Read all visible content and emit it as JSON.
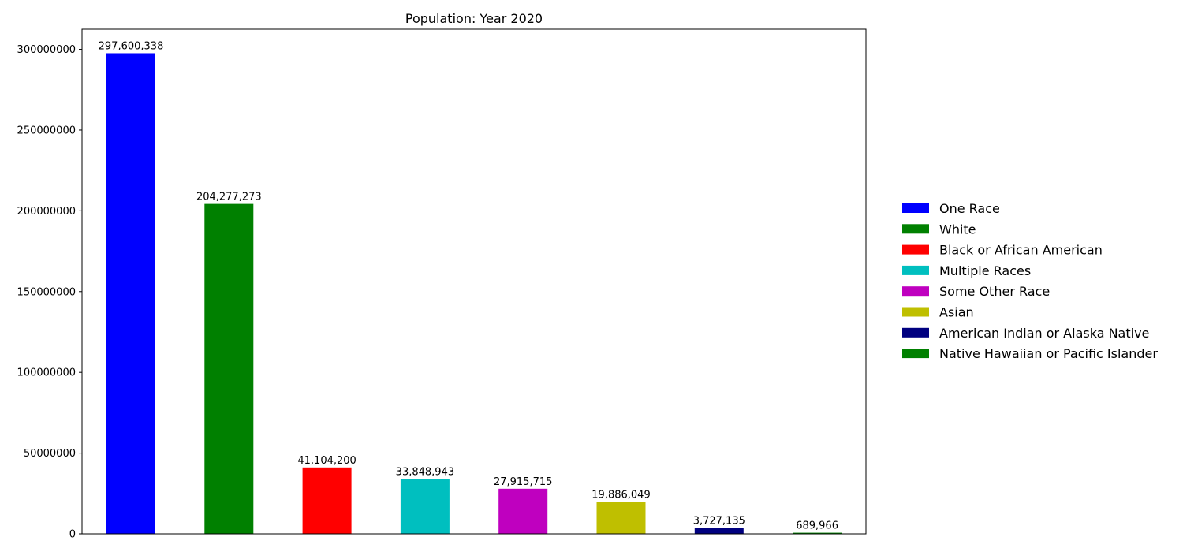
{
  "chart_data": {
    "type": "bar",
    "title": "Population: Year 2020",
    "xlabel": "",
    "ylabel": "",
    "categories": [
      "One Race",
      "White",
      "Black or African American",
      "Multiple Races",
      "Some Other Race",
      "Asian",
      "American Indian or Alaska Native",
      "Native Hawaiian or Pacific Islander"
    ],
    "values": [
      297600338,
      204277273,
      41104200,
      33848943,
      27915715,
      19886049,
      3727135,
      689966
    ],
    "value_labels": [
      "297,600,338",
      "204,277,273",
      "41,104,200",
      "33,848,943",
      "27,915,715",
      "19,886,049",
      "3,727,135",
      "689,966"
    ],
    "colors": [
      "#0000ff",
      "#008000",
      "#ff0000",
      "#00bfbf",
      "#bf00bf",
      "#bfbf00",
      "#000080",
      "#008000"
    ],
    "ylim": [
      0,
      312480355
    ],
    "yticks": [
      0,
      50000000,
      100000000,
      150000000,
      200000000,
      250000000,
      300000000
    ],
    "ytick_labels": [
      "0",
      "50000000",
      "100000000",
      "150000000",
      "200000000",
      "250000000",
      "300000000"
    ],
    "xtick_labels_shown": false,
    "grid": false,
    "legend_position": "right"
  }
}
